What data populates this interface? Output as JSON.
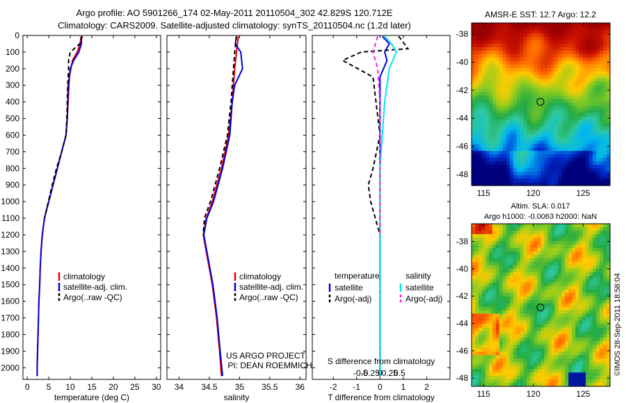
{
  "header": {
    "line1": "Argo profile: AO 5901266_174 02-May-2011 20110504_302 42.829S 120.712E",
    "line2": "Climatology: CARS2009. Satellite-adjusted climatology: synTS_20110504.nc (1.2d later)"
  },
  "colors": {
    "climatology": "#e00000",
    "satellite": "#0000dd",
    "argo": "#000000",
    "salinity_sat": "#00e5ee",
    "salinity_argo": "#ee22ee"
  },
  "chart_data": [
    {
      "type": "line",
      "panel": "temperature",
      "xlabel": "temperature (deg C)",
      "ylabel": "",
      "xlim": [
        -1,
        31
      ],
      "ylim": [
        2070,
        0
      ],
      "y_reversed": true,
      "xticks": [
        "0",
        "5",
        "10",
        "15",
        "20",
        "25",
        "30"
      ],
      "xtick_values": [
        0,
        5,
        10,
        15,
        20,
        25,
        30
      ],
      "yticks": [
        "0",
        "100",
        "200",
        "300",
        "400",
        "500",
        "600",
        "700",
        "800",
        "900",
        "1000",
        "1100",
        "1200",
        "1300",
        "1400",
        "1500",
        "1600",
        "1700",
        "1800",
        "1900",
        "2000"
      ],
      "ytick_values": [
        0,
        100,
        200,
        300,
        400,
        500,
        600,
        700,
        800,
        900,
        1000,
        1100,
        1200,
        1300,
        1400,
        1500,
        1600,
        1700,
        1800,
        1900,
        2000
      ],
      "legend": [
        "climatology",
        "satellite-adj. clim.",
        "Argo(..raw -QC)"
      ],
      "series": [
        {
          "name": "climatology",
          "color": "#e00000",
          "dash": "",
          "points": [
            [
              12.5,
              5
            ],
            [
              12.3,
              50
            ],
            [
              11.6,
              100
            ],
            [
              10.5,
              150
            ],
            [
              9.8,
              250
            ],
            [
              9.5,
              400
            ],
            [
              9.3,
              500
            ],
            [
              9.0,
              600
            ],
            [
              8.0,
              700
            ],
            [
              7.0,
              800
            ],
            [
              6.0,
              900
            ],
            [
              5.0,
              1000
            ],
            [
              4.0,
              1100
            ],
            [
              3.5,
              1200
            ],
            [
              3.2,
              1300
            ],
            [
              3.0,
              1400
            ],
            [
              2.9,
              1500
            ],
            [
              2.7,
              1600
            ],
            [
              2.6,
              1700
            ],
            [
              2.5,
              1800
            ],
            [
              2.4,
              1900
            ],
            [
              2.3,
              2000
            ],
            [
              2.3,
              2050
            ]
          ]
        },
        {
          "name": "satellite-adj. clim.",
          "color": "#0000dd",
          "dash": "",
          "points": [
            [
              12.6,
              5
            ],
            [
              12.6,
              50
            ],
            [
              12.0,
              100
            ],
            [
              10.8,
              150
            ],
            [
              10.0,
              200
            ],
            [
              9.5,
              300
            ],
            [
              9.4,
              400
            ],
            [
              9.3,
              500
            ],
            [
              9.0,
              600
            ],
            [
              8.0,
              700
            ],
            [
              7.0,
              800
            ],
            [
              6.0,
              900
            ],
            [
              5.0,
              1000
            ],
            [
              4.0,
              1100
            ],
            [
              3.5,
              1200
            ],
            [
              3.2,
              1300
            ],
            [
              3.0,
              1400
            ],
            [
              2.9,
              1500
            ],
            [
              2.7,
              1600
            ],
            [
              2.6,
              1700
            ],
            [
              2.5,
              1800
            ],
            [
              2.4,
              1900
            ],
            [
              2.3,
              2000
            ],
            [
              2.3,
              2050
            ]
          ]
        },
        {
          "name": "Argo(..raw -QC)",
          "color": "#000000",
          "dash": "6,4",
          "points": [
            [
              12.8,
              5
            ],
            [
              12.2,
              50
            ],
            [
              10.0,
              100
            ],
            [
              9.6,
              150
            ],
            [
              9.6,
              200
            ],
            [
              9.4,
              300
            ],
            [
              9.3,
              400
            ],
            [
              9.2,
              500
            ],
            [
              9.0,
              600
            ],
            [
              8.0,
              700
            ],
            [
              6.8,
              800
            ],
            [
              5.8,
              900
            ],
            [
              4.9,
              1000
            ],
            [
              4.0,
              1100
            ]
          ]
        }
      ]
    },
    {
      "type": "line",
      "panel": "salinity",
      "xlabel": "salinity",
      "xlim": [
        33.8,
        36.1
      ],
      "ylim": [
        2070,
        0
      ],
      "y_reversed": true,
      "xticks": [
        "34",
        "34.5",
        "35",
        "35.5",
        "36"
      ],
      "xtick_values": [
        34,
        34.5,
        35,
        35.5,
        36
      ],
      "legend": [
        "climatology",
        "satellite-adj. clim.",
        "Argo(..raw -QC)"
      ],
      "annotation": [
        "US ARGO PROJECT",
        "PI: DEAN ROEMMICH"
      ],
      "series": [
        {
          "name": "climatology",
          "color": "#e00000",
          "dash": "",
          "points": [
            [
              34.98,
              5
            ],
            [
              34.95,
              100
            ],
            [
              34.92,
              200
            ],
            [
              34.88,
              400
            ],
            [
              34.82,
              600
            ],
            [
              34.7,
              800
            ],
            [
              34.55,
              1000
            ],
            [
              34.45,
              1100
            ],
            [
              34.4,
              1200
            ],
            [
              34.45,
              1300
            ],
            [
              34.55,
              1500
            ],
            [
              34.62,
              1700
            ],
            [
              34.67,
              1900
            ],
            [
              34.7,
              2050
            ]
          ]
        },
        {
          "name": "satellite-adj. clim.",
          "color": "#0000dd",
          "dash": "",
          "points": [
            [
              34.95,
              5
            ],
            [
              34.93,
              50
            ],
            [
              35.02,
              100
            ],
            [
              35.05,
              200
            ],
            [
              34.92,
              300
            ],
            [
              34.88,
              400
            ],
            [
              34.84,
              600
            ],
            [
              34.72,
              800
            ],
            [
              34.57,
              1000
            ],
            [
              34.46,
              1100
            ],
            [
              34.41,
              1200
            ],
            [
              34.46,
              1300
            ],
            [
              34.56,
              1500
            ],
            [
              34.63,
              1700
            ],
            [
              34.68,
              1900
            ],
            [
              34.72,
              2050
            ]
          ]
        },
        {
          "name": "Argo(..raw -QC)",
          "color": "#000000",
          "dash": "6,4",
          "points": [
            [
              34.95,
              5
            ],
            [
              34.92,
              100
            ],
            [
              34.9,
              200
            ],
            [
              34.86,
              400
            ],
            [
              34.8,
              600
            ],
            [
              34.67,
              800
            ],
            [
              34.52,
              1000
            ],
            [
              34.42,
              1100
            ],
            [
              34.4,
              1200
            ]
          ]
        }
      ]
    },
    {
      "type": "line",
      "panel": "difference",
      "xlabel": "T difference from climatology",
      "xlabel2": "S difference from climatology",
      "xlim": [
        -2.9,
        3.0
      ],
      "ylim": [
        2070,
        0
      ],
      "y_reversed": true,
      "xticks": [
        "-2",
        "-1",
        "0",
        "1",
        "2"
      ],
      "xtick_values": [
        -2,
        -1,
        0,
        1,
        2
      ],
      "s_xticks": [
        "-0.5",
        "-0.25",
        "0",
        "0.25",
        "0.5"
      ],
      "s_xtick_values": [
        -0.5,
        -0.25,
        0,
        0.25,
        0.5
      ],
      "legend_heads": [
        "temperature",
        "salinity"
      ],
      "legend": [
        "satellite",
        "Argo(-adj)",
        "satellite",
        "Argo(-adj)"
      ],
      "series": [
        {
          "name": "temperature satellite",
          "color": "#0000dd",
          "dash": "",
          "points": [
            [
              0.1,
              5
            ],
            [
              0.4,
              50
            ],
            [
              0.2,
              100
            ],
            [
              0.3,
              150
            ],
            [
              0,
              250
            ],
            [
              0,
              600
            ],
            [
              0,
              900
            ],
            [
              0,
              1200
            ],
            [
              0,
              1500
            ],
            [
              0,
              2050
            ]
          ]
        },
        {
          "name": "temperature Argo(-adj)",
          "color": "#000000",
          "dash": "6,4",
          "points": [
            [
              0.8,
              5
            ],
            [
              1.2,
              80
            ],
            [
              -0.8,
              100
            ],
            [
              -1.6,
              150
            ],
            [
              -0.3,
              250
            ],
            [
              0,
              600
            ],
            [
              -0.3,
              800
            ],
            [
              -0.5,
              900
            ],
            [
              -0.4,
              1000
            ],
            [
              -0.2,
              1100
            ],
            [
              0,
              1200
            ],
            [
              0,
              1500
            ],
            [
              0,
              2050
            ]
          ]
        },
        {
          "name": "salinity satellite",
          "color": "#00e5ee",
          "dash": "",
          "points": [
            [
              0.2,
              5
            ],
            [
              0.5,
              50
            ],
            [
              0.7,
              100
            ],
            [
              0.4,
              200
            ],
            [
              0.2,
              400
            ],
            [
              0.1,
              600
            ],
            [
              0,
              800
            ],
            [
              0,
              1000
            ],
            [
              0,
              1200
            ],
            [
              0,
              1500
            ],
            [
              0,
              2050
            ]
          ]
        },
        {
          "name": "salinity Argo(-adj)",
          "color": "#ee22ee",
          "dash": "6,4",
          "points": [
            [
              -0.1,
              5
            ],
            [
              -0.3,
              100
            ],
            [
              -0.1,
              200
            ],
            [
              0,
              400
            ],
            [
              0,
              600
            ],
            [
              0,
              800
            ],
            [
              0,
              1000
            ],
            [
              0,
              1200
            ]
          ]
        }
      ]
    }
  ],
  "maps": {
    "sst": {
      "title": "AMSR-E SST: 12.7 Argo: 12.2",
      "lat_ticks": [
        "-38",
        "-40",
        "-42",
        "-44",
        "-46",
        "-48"
      ],
      "lat_values": [
        -38,
        -40,
        -42,
        -44,
        -46,
        -48
      ],
      "lon_ticks": [
        "115",
        "120",
        "125"
      ],
      "lon_values": [
        115,
        120,
        125
      ],
      "lat_range": [
        -37.2,
        -48.8
      ],
      "lon_range": [
        113.8,
        127.7
      ],
      "marker": {
        "lon": 120.712,
        "lat": -42.829
      },
      "palette": [
        "#00007e",
        "#0030d0",
        "#00b8f0",
        "#30c8a0",
        "#22aa44",
        "#88cc22",
        "#ffcc00",
        "#ff6600",
        "#c81000",
        "#990000"
      ]
    },
    "sla": {
      "title_line1": "Altim. SLA: 0.017",
      "title_line2": "Argo h1000: -0.0063 h2000: NaN",
      "lat_ticks": [
        "-38",
        "-40",
        "-42",
        "-44",
        "-46",
        "-48"
      ],
      "lat_values": [
        -38,
        -40,
        -42,
        -44,
        -46,
        -48
      ],
      "lon_ticks": [
        "115",
        "120",
        "125"
      ],
      "lon_values": [
        115,
        120,
        125
      ],
      "lat_range": [
        -36.7,
        -48.6
      ],
      "lon_range": [
        113.8,
        127.7
      ],
      "marker": {
        "lon": 120.712,
        "lat": -42.829
      }
    }
  },
  "footer": {
    "stamp": "©IMOS 28-Sep-2011 18:58:04"
  }
}
